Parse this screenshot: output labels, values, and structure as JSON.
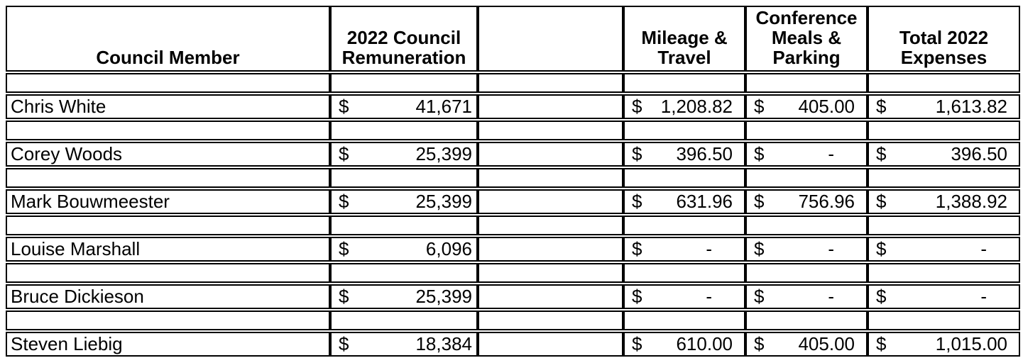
{
  "table": {
    "currency_symbol": "$",
    "columns": [
      {
        "key": "member",
        "label": "Council Member"
      },
      {
        "key": "remuneration",
        "label": "2022 Council\nRemuneration"
      },
      {
        "key": "spacer",
        "label": ""
      },
      {
        "key": "mileage",
        "label": "Mileage &\nTravel"
      },
      {
        "key": "conference",
        "label": "Conference\nMeals &\nParking"
      },
      {
        "key": "total",
        "label": "Total 2022\nExpenses"
      }
    ],
    "rows": [
      {
        "member": "Chris White",
        "remuneration": "41,671",
        "mileage": "1,208.82",
        "conference": "405.00",
        "total": "1,613.82"
      },
      {
        "member": "Corey Woods",
        "remuneration": "25,399",
        "mileage": "396.50",
        "conference": "-",
        "total": "396.50"
      },
      {
        "member": "Mark Bouwmeester",
        "remuneration": "25,399",
        "mileage": "631.96",
        "conference": "756.96",
        "total": "1,388.92"
      },
      {
        "member": "Louise Marshall",
        "remuneration": "6,096",
        "mileage": "-",
        "conference": "-",
        "total": "-"
      },
      {
        "member": "Bruce Dickieson",
        "remuneration": "25,399",
        "mileage": "-",
        "conference": "-",
        "total": "-"
      },
      {
        "member": "Steven Liebig",
        "remuneration": "18,384",
        "mileage": "610.00",
        "conference": "405.00",
        "total": "1,015.00"
      }
    ],
    "colors": {
      "border": "#000000",
      "background": "#ffffff",
      "text": "#000000"
    }
  }
}
